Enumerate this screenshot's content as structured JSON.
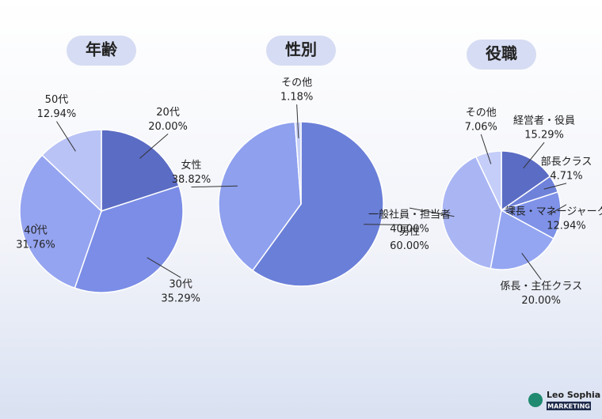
{
  "chart_data": [
    {
      "type": "pie",
      "title": "年齢",
      "categories": [
        "20代",
        "30代",
        "40代",
        "50代"
      ],
      "values": [
        20.0,
        35.29,
        31.76,
        12.94
      ],
      "value_labels": [
        "20.00%",
        "35.29%",
        "31.76%",
        "12.94%"
      ],
      "colors": [
        "#5b6cc4",
        "#7b8de6",
        "#95a4f0",
        "#b9c3f5"
      ]
    },
    {
      "type": "pie",
      "title": "性別",
      "categories": [
        "男性",
        "女性",
        "その他"
      ],
      "values": [
        60.0,
        38.82,
        1.18
      ],
      "value_labels": [
        "60.00%",
        "38.82%",
        "1.18%"
      ],
      "colors": [
        "#6a7fd8",
        "#8ea0ee",
        "#c7d0f7"
      ]
    },
    {
      "type": "pie",
      "title": "役職",
      "categories": [
        "経営者・役員",
        "部長クラス",
        "課長・マネージャークラス",
        "係長・主任クラス",
        "一般社員・担当者",
        "その他"
      ],
      "values": [
        15.29,
        4.71,
        12.94,
        20.0,
        40.0,
        7.06
      ],
      "value_labels": [
        "15.29%",
        "4.71%",
        "12.94%",
        "20.00%",
        "40.00%",
        "7.06%"
      ],
      "colors": [
        "#5b6cc4",
        "#6f82da",
        "#7f92e8",
        "#94a6f2",
        "#aab6f4",
        "#c5cef8"
      ]
    }
  ],
  "logo": {
    "name": "Leo Sophia",
    "tag": "MARKETING"
  }
}
